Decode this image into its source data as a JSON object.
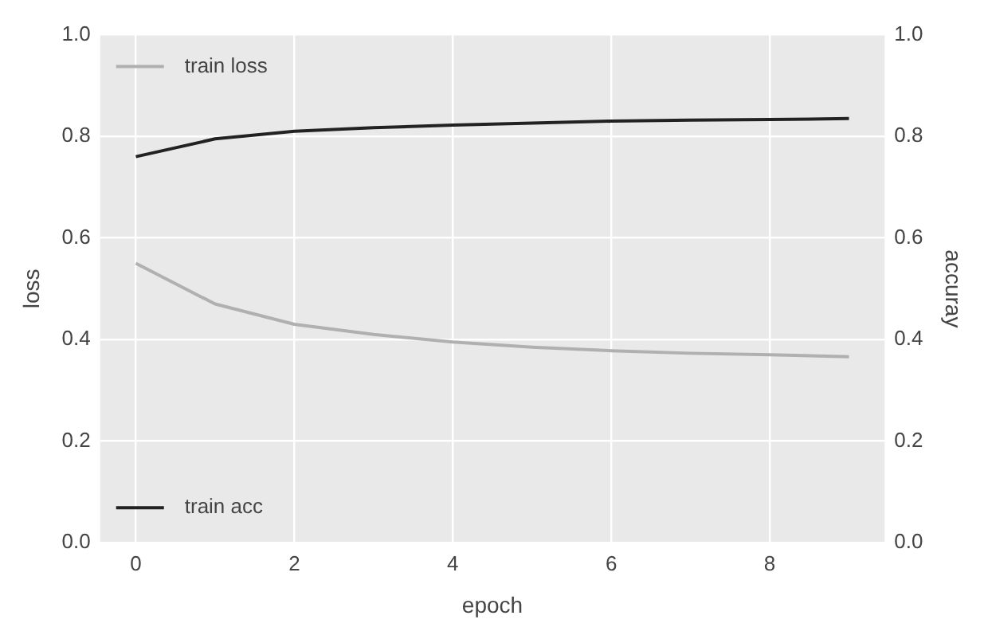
{
  "chart_data": {
    "type": "line",
    "xlabel": "epoch",
    "ylabel": "loss",
    "y2label": "accuray",
    "x": [
      0,
      1,
      2,
      3,
      4,
      5,
      6,
      7,
      8,
      9
    ],
    "series": [
      {
        "name": "train loss",
        "color": "#b0b0b0",
        "values": [
          0.55,
          0.47,
          0.43,
          0.41,
          0.395,
          0.385,
          0.378,
          0.373,
          0.37,
          0.366
        ]
      },
      {
        "name": "train acc",
        "color": "#222222",
        "axis": "y2",
        "values": [
          0.76,
          0.795,
          0.81,
          0.817,
          0.822,
          0.826,
          0.83,
          0.832,
          0.833,
          0.835
        ]
      }
    ],
    "xlim": [
      -0.45,
      9.45
    ],
    "xticks": [
      0,
      2,
      4,
      6,
      8
    ],
    "ylim": [
      0,
      1
    ],
    "yticks": [
      {
        "value": 0,
        "label": "0.0"
      },
      0.2,
      0.4,
      0.6,
      0.8,
      {
        "value": 1,
        "label": "1.0"
      }
    ],
    "y2lim": [
      0,
      1
    ],
    "y2ticks": [
      {
        "value": 0,
        "label": "0.0"
      },
      0.2,
      0.4,
      0.6,
      0.8,
      {
        "value": 1,
        "label": "1.0"
      }
    ],
    "grid": true,
    "legend": "left",
    "marker": "none",
    "line_style": "solid"
  }
}
